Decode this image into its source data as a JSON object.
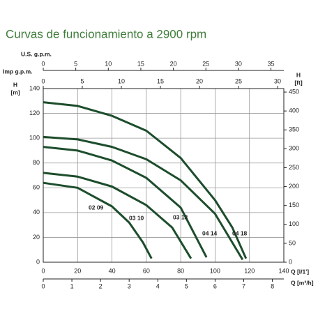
{
  "chart_data": {
    "type": "line",
    "title": "Curvas de funcionamiento a 2900 rpm",
    "xlabel": "Q [l/1']",
    "xlim": [
      0,
      140
    ],
    "xticks": [
      0,
      20,
      40,
      60,
      80,
      100,
      120,
      140
    ],
    "ylabel": [
      "H",
      "[m]"
    ],
    "ylim": [
      0,
      140
    ],
    "yticks": [
      0,
      20,
      40,
      60,
      80,
      100,
      120,
      140
    ],
    "y2label": [
      "H",
      "[ft]"
    ],
    "y2lim": [
      0,
      459.3
    ],
    "y2ticks": [
      0,
      50,
      100,
      150,
      200,
      250,
      300,
      350,
      400,
      450
    ],
    "x2": {
      "label": "Q [m³/h]",
      "lim": [
        0,
        8.4
      ],
      "ticks": [
        0,
        1,
        2,
        3,
        4,
        5,
        6,
        7,
        8
      ]
    },
    "x3": {
      "label": "U.S. g.p.m.",
      "lim": [
        0,
        36.98
      ],
      "ticks": [
        0,
        5,
        10,
        15,
        20,
        25,
        30,
        35
      ]
    },
    "x4": {
      "label": "Imp g.p.m.",
      "lim": [
        0,
        30.8
      ],
      "ticks": [
        0,
        5,
        10,
        15,
        20,
        25,
        30
      ]
    },
    "grid": true,
    "series": [
      {
        "name": "02 09",
        "color": "#1d4d2c",
        "x": [
          0,
          20,
          40,
          50,
          58,
          63
        ],
        "values": [
          64,
          60,
          45,
          32,
          16,
          3
        ]
      },
      {
        "name": "03 10",
        "color": "#1d4d2c",
        "x": [
          0,
          20,
          40,
          60,
          75,
          86
        ],
        "values": [
          72,
          69,
          61,
          46,
          28,
          3
        ]
      },
      {
        "name": "03 13",
        "color": "#1d4d2c",
        "x": [
          0,
          20,
          40,
          60,
          80,
          95
        ],
        "values": [
          93,
          90,
          82,
          68,
          44,
          4
        ]
      },
      {
        "name": "04 14",
        "color": "#1d4d2c",
        "x": [
          0,
          20,
          40,
          60,
          80,
          100,
          116
        ],
        "values": [
          101,
          99,
          93,
          83,
          66,
          39,
          2
        ]
      },
      {
        "name": "04 18",
        "color": "#1d4d2c",
        "x": [
          0,
          20,
          40,
          60,
          80,
          100,
          110,
          118
        ],
        "values": [
          129,
          126,
          118,
          106,
          84,
          50,
          28,
          3
        ]
      }
    ]
  }
}
